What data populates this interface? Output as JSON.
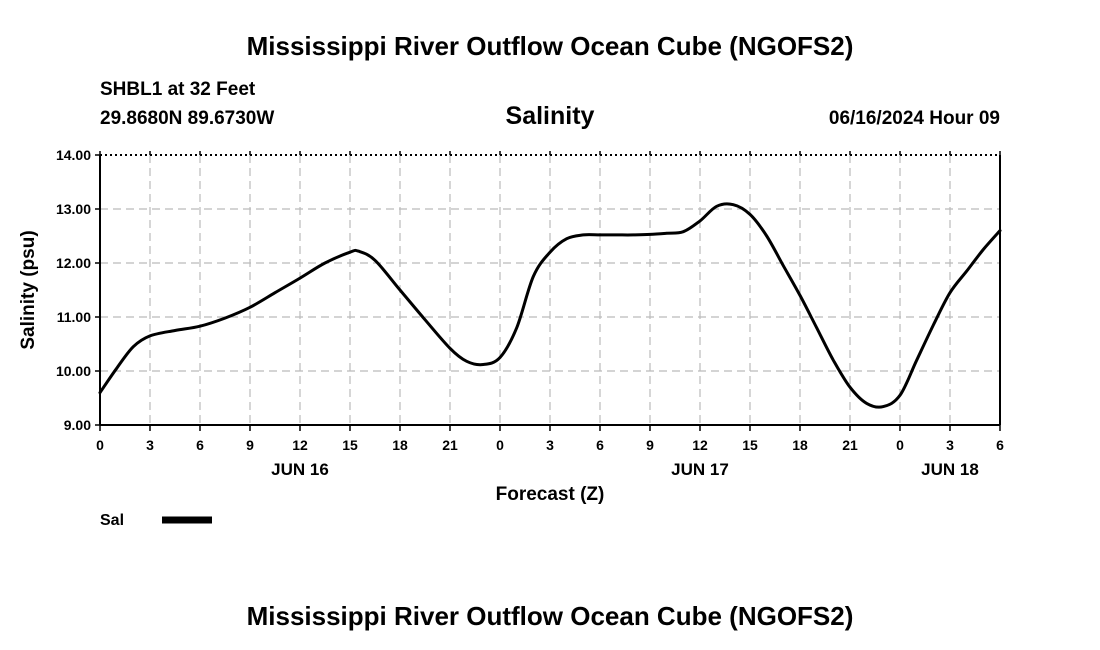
{
  "header": {
    "title": "Mississippi River Outflow Ocean Cube (NGOFS2)",
    "station": "SHBL1 at 32 Feet",
    "coordinates": "29.8680N  89.6730W",
    "variable": "Salinity",
    "timestamp": "06/16/2024 Hour 09"
  },
  "footer": {
    "title": "Mississippi River Outflow Ocean Cube (NGOFS2)"
  },
  "chart_data": {
    "type": "line",
    "title": "Salinity",
    "xlabel": "Forecast (Z)",
    "ylabel": "Salinity (psu)",
    "ylim": [
      9.0,
      14.0
    ],
    "xlim": [
      0,
      54
    ],
    "grid": true,
    "y_ticks": [
      9.0,
      10.0,
      11.0,
      12.0,
      13.0,
      14.0
    ],
    "y_tick_labels": [
      "9.00",
      "10.00",
      "11.00",
      "12.00",
      "13.00",
      "14.00"
    ],
    "x_ticks": [
      0,
      3,
      6,
      9,
      12,
      15,
      18,
      21,
      24,
      27,
      30,
      33,
      36,
      39,
      42,
      45,
      48,
      51,
      54
    ],
    "x_tick_labels": [
      "0",
      "3",
      "6",
      "9",
      "12",
      "15",
      "18",
      "21",
      "0",
      "3",
      "6",
      "9",
      "12",
      "15",
      "18",
      "21",
      "0",
      "3",
      "6"
    ],
    "date_labels": [
      {
        "label": "JUN 16",
        "x": 12
      },
      {
        "label": "JUN 17",
        "x": 36
      },
      {
        "label": "JUN 18",
        "x": 51
      }
    ],
    "legend": {
      "position": "bottom-left",
      "entries": [
        "Sal"
      ]
    },
    "series": [
      {
        "name": "Sal",
        "color": "#000000",
        "x": [
          0,
          1,
          2,
          3,
          4.5,
          6,
          7.5,
          9,
          10.5,
          12,
          13.5,
          15,
          15.5,
          16.5,
          18,
          19.5,
          21,
          22,
          23,
          24,
          25,
          26,
          27,
          28,
          29,
          30,
          31,
          32,
          33,
          34,
          35,
          36,
          37,
          38,
          39,
          40,
          41,
          42,
          43,
          44,
          45,
          46,
          47,
          48,
          49,
          50,
          51,
          52,
          53,
          54
        ],
        "values": [
          9.6,
          10.05,
          10.45,
          10.65,
          10.75,
          10.83,
          10.98,
          11.18,
          11.45,
          11.72,
          12.0,
          12.2,
          12.22,
          12.05,
          11.5,
          10.95,
          10.42,
          10.18,
          10.12,
          10.25,
          10.8,
          11.75,
          12.2,
          12.45,
          12.52,
          12.52,
          12.52,
          12.52,
          12.53,
          12.55,
          12.58,
          12.78,
          13.05,
          13.08,
          12.9,
          12.5,
          11.95,
          11.4,
          10.8,
          10.2,
          9.7,
          9.4,
          9.34,
          9.55,
          10.2,
          10.85,
          11.45,
          11.85,
          12.25,
          12.6
        ]
      }
    ]
  }
}
